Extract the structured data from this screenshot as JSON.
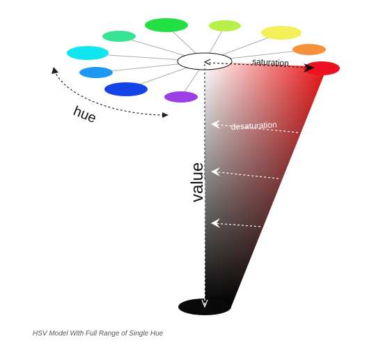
{
  "diagram": {
    "labels": {
      "hue": "hue",
      "saturation": "saturation",
      "desaturation": "desaturation",
      "value": "value"
    },
    "caption": "HSV Model With Full Range of Single Hue"
  },
  "colors": {
    "hue_pure": "#ee1111",
    "black": "#000000",
    "white": "#ffffff",
    "arrow": "#333333",
    "spoke": "#aaaaaa",
    "hue_swatches": [
      "#22e044",
      "#b8f04a",
      "#f4f05a",
      "#f4913a",
      "#ff1f2b",
      "#ef4fa0",
      "#f04fc6",
      "#9a40e6",
      "#1444e6",
      "#1c98f0",
      "#10e6ee",
      "#36e494"
    ]
  }
}
